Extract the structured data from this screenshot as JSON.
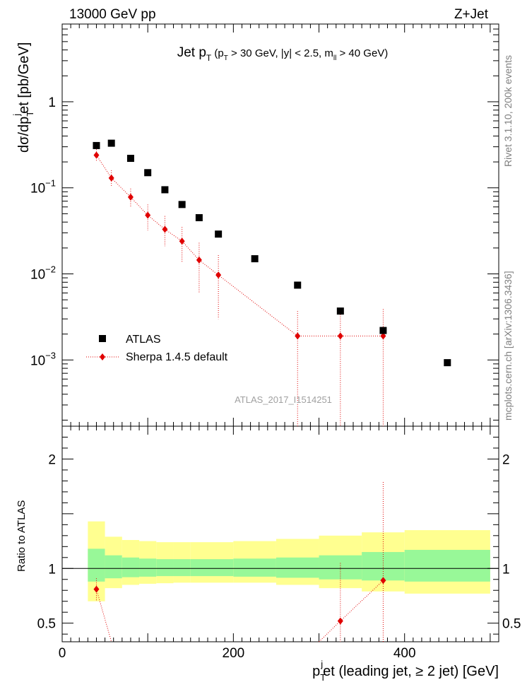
{
  "header": {
    "left": "13000 GeV pp",
    "right": "Z+Jet"
  },
  "side_labels": {
    "rivet": "Rivet 3.1.10,  200k events",
    "mcplots": "mcplots.cern.ch [arXiv:1306.3436]"
  },
  "watermark": "ATLAS_2017_I1514251",
  "colors": {
    "data": "#000000",
    "mc": "#e00000",
    "band_inner": "#98f898",
    "band_outer": "#ffff90"
  },
  "chart_data": [
    {
      "type": "scatter",
      "panel": "main",
      "title_parts": {
        "main": "Jet p",
        "sub": "T",
        "cut_open": " (p",
        "cut_sub": "T",
        "cut_mid": " > 30 GeV, |y| < 2.5, m",
        "cut_sub2": "ll",
        "cut_close": " > 40 GeV)"
      },
      "ylabel_parts": {
        "a": "dσ/dp",
        "sub": "T",
        "sup": "j",
        "b": "et [pb/GeV]"
      },
      "yscale": "log",
      "xlim": [
        0,
        510
      ],
      "ylim": [
        0.00017,
        8
      ],
      "y_ticks": [
        {
          "value": 0.001,
          "base": "10",
          "exp": "−3"
        },
        {
          "value": 0.01,
          "base": "10",
          "exp": "−2"
        },
        {
          "value": 0.1,
          "base": "10",
          "exp": "−1"
        },
        {
          "value": 1,
          "base": "1",
          "exp": ""
        }
      ],
      "legend": {
        "position": "bottom-left",
        "entries": [
          "ATLAS",
          "Sherpa 1.4.5 default"
        ]
      },
      "series": [
        {
          "name": "ATLAS",
          "marker": "square",
          "x": [
            40,
            57.5,
            80,
            100,
            120,
            140,
            160,
            182.5,
            225,
            275,
            325,
            375,
            450
          ],
          "y": [
            0.31,
            0.33,
            0.22,
            0.15,
            0.095,
            0.064,
            0.045,
            0.029,
            0.015,
            0.0074,
            0.0037,
            0.0022,
            0.00093
          ]
        },
        {
          "name": "Sherpa 1.4.5 default",
          "marker": "diamond",
          "x": [
            40,
            57.5,
            80,
            100,
            120,
            140,
            160,
            182.5,
            275,
            325,
            375
          ],
          "y": [
            0.24,
            0.13,
            0.078,
            0.048,
            0.033,
            0.024,
            0.0145,
            0.0097,
            0.0019,
            0.0019,
            0.0019
          ],
          "y_low": [
            0.205,
            0.105,
            0.06,
            0.032,
            0.021,
            0.0135,
            0.006,
            0.003,
            0.00017,
            0.00017,
            0.00017
          ],
          "y_high": [
            0.28,
            0.16,
            0.098,
            0.064,
            0.047,
            0.035,
            0.023,
            0.0165,
            0.0037,
            0.0038,
            0.0039
          ]
        }
      ]
    },
    {
      "type": "line",
      "panel": "ratio",
      "ylabel": "Ratio to ATLAS",
      "xlabel_parts": {
        "a": "p",
        "sub": "T",
        "sup": "j",
        "b": "et (leading jet, ≥ 2 jet) [GeV]"
      },
      "xlim": [
        0,
        510
      ],
      "ylim": [
        0.33,
        2.3
      ],
      "x_ticks": [
        {
          "value": 0,
          "label": "0"
        },
        {
          "value": 200,
          "label": "200"
        },
        {
          "value": 400,
          "label": "400"
        }
      ],
      "y_ticks": [
        {
          "value": 0.5,
          "label": "0.5"
        },
        {
          "value": 1,
          "label": "1"
        },
        {
          "value": 2,
          "label": "2"
        }
      ],
      "bands": {
        "edges": [
          30,
          50,
          70,
          90,
          110,
          130,
          150,
          170,
          200,
          250,
          300,
          350,
          400,
          500
        ],
        "outer_lo": [
          0.7,
          0.82,
          0.85,
          0.86,
          0.865,
          0.87,
          0.87,
          0.87,
          0.87,
          0.85,
          0.82,
          0.79,
          0.77
        ],
        "outer_hi": [
          1.43,
          1.29,
          1.26,
          1.25,
          1.24,
          1.24,
          1.24,
          1.24,
          1.25,
          1.27,
          1.3,
          1.33,
          1.35
        ],
        "inner_lo": [
          0.88,
          0.91,
          0.92,
          0.925,
          0.93,
          0.93,
          0.93,
          0.93,
          0.925,
          0.915,
          0.9,
          0.89,
          0.88
        ],
        "inner_hi": [
          1.18,
          1.12,
          1.1,
          1.09,
          1.085,
          1.085,
          1.085,
          1.085,
          1.09,
          1.1,
          1.12,
          1.15,
          1.17
        ]
      },
      "series": [
        {
          "name": "Sherpa 1.4.5 default",
          "x": [
            40,
            325,
            375
          ],
          "y": [
            0.81,
            0.52,
            0.89
          ],
          "y_low": [
            0.7,
            0.33,
            0.33
          ],
          "y_high": [
            0.91,
            1.05,
            1.79
          ]
        }
      ]
    }
  ]
}
